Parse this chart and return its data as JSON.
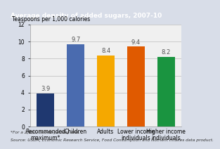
{
  "title": "Average density of added sugars, 2007-10",
  "ylabel": "Teaspoons per 1,000 calories",
  "categories": [
    "Recommended\nmaximum*",
    "Children",
    "Adults",
    "Lower income\nindividuals",
    "Higher income\nindividuals"
  ],
  "values": [
    3.9,
    9.7,
    8.4,
    9.4,
    8.2
  ],
  "bar_colors": [
    "#1f3870",
    "#4a6baf",
    "#f5a800",
    "#e05a00",
    "#1a9440"
  ],
  "ylim": [
    0,
    12
  ],
  "yticks": [
    0,
    2,
    4,
    6,
    8,
    10,
    12
  ],
  "title_bg": "#1f3870",
  "title_color": "#ffffff",
  "title_fontsize": 6.5,
  "ylabel_fontsize": 5.5,
  "tick_fontsize": 5.5,
  "bar_label_fontsize": 6.0,
  "footer1": "*For a 2,000–calorie-per-day diet.",
  "footer2": "Source: USDA, Economic Research Service, Food Consumption and Nutrient Intakes data product.",
  "footer_fontsize": 4.2,
  "plot_bg": "#f0f0f0",
  "fig_bg": "#d8dde8"
}
